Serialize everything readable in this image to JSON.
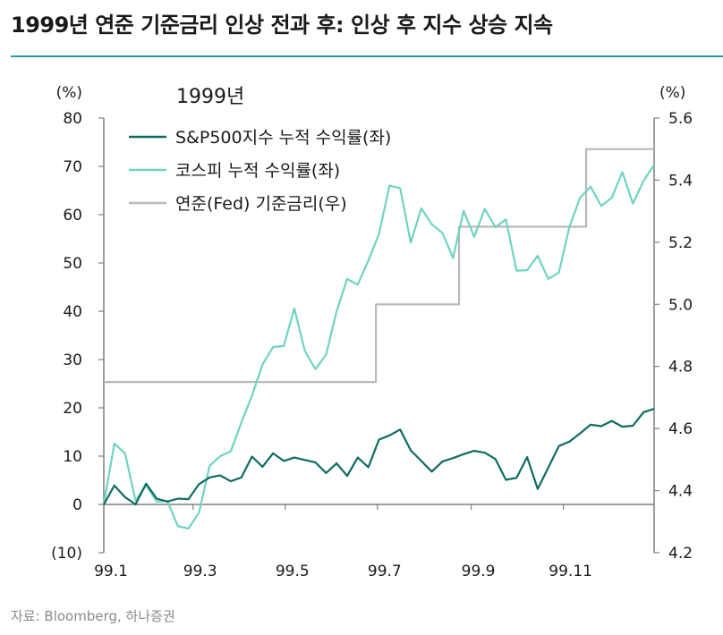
{
  "title": "1999년 연준 기준금리 인상 전과 후: 인상 후 지수 상승 지속",
  "source": "자료: Bloomberg, 하나증권",
  "chart_data": {
    "type": "line",
    "subtitle": "1999년",
    "left_axis": {
      "unit": "(%)",
      "ylim": [
        -10,
        80
      ],
      "ticks": [
        -10,
        0,
        10,
        20,
        30,
        40,
        50,
        60,
        70,
        80
      ],
      "tick_labels": [
        "(10)",
        "0",
        "10",
        "20",
        "30",
        "40",
        "50",
        "60",
        "70",
        "80"
      ]
    },
    "right_axis": {
      "unit": "(%)",
      "ylim": [
        4.2,
        5.6
      ],
      "ticks": [
        4.2,
        4.4,
        4.6,
        4.8,
        5.0,
        5.2,
        5.4,
        5.6
      ],
      "tick_labels": [
        "4.2",
        "4.4",
        "4.6",
        "4.8",
        "5.0",
        "5.2",
        "5.4",
        "5.6"
      ]
    },
    "x_axis": {
      "range": [
        "1999-01-01",
        "1999-12-31"
      ],
      "tick_labels": [
        "99.1",
        "99.3",
        "99.5",
        "99.7",
        "99.9",
        "99.11"
      ],
      "tick_dates": [
        "1999-01-01",
        "1999-03-01",
        "1999-05-01",
        "1999-07-01",
        "1999-09-01",
        "1999-11-01"
      ]
    },
    "legend_position": "top-left",
    "series": [
      {
        "name": "S&P500지수 누적 수익률(좌)",
        "axis": "left",
        "color": "#0f6b63",
        "points": [
          [
            "1999-01-01",
            0
          ],
          [
            "1999-01-08",
            3.9
          ],
          [
            "1999-01-15",
            1.5
          ],
          [
            "1999-01-22",
            0
          ],
          [
            "1999-01-29",
            4.3
          ],
          [
            "1999-02-05",
            1.2
          ],
          [
            "1999-02-12",
            0.6
          ],
          [
            "1999-02-19",
            1.2
          ],
          [
            "1999-02-26",
            1.1
          ],
          [
            "1999-03-05",
            4.2
          ],
          [
            "1999-03-12",
            5.6
          ],
          [
            "1999-03-19",
            6.0
          ],
          [
            "1999-03-26",
            4.8
          ],
          [
            "1999-04-02",
            5.6
          ],
          [
            "1999-04-09",
            9.9
          ],
          [
            "1999-04-16",
            7.8
          ],
          [
            "1999-04-23",
            10.6
          ],
          [
            "1999-04-30",
            9.0
          ],
          [
            "1999-05-07",
            9.7
          ],
          [
            "1999-05-14",
            9.2
          ],
          [
            "1999-05-21",
            8.7
          ],
          [
            "1999-05-28",
            6.5
          ],
          [
            "1999-06-04",
            8.5
          ],
          [
            "1999-06-11",
            5.9
          ],
          [
            "1999-06-18",
            9.7
          ],
          [
            "1999-06-25",
            7.7
          ],
          [
            "1999-07-02",
            13.4
          ],
          [
            "1999-07-09",
            14.3
          ],
          [
            "1999-07-16",
            15.5
          ],
          [
            "1999-07-23",
            11.2
          ],
          [
            "1999-07-30",
            9.0
          ],
          [
            "1999-08-06",
            6.8
          ],
          [
            "1999-08-13",
            8.9
          ],
          [
            "1999-08-20",
            9.6
          ],
          [
            "1999-08-27",
            10.4
          ],
          [
            "1999-09-03",
            11.1
          ],
          [
            "1999-09-10",
            10.7
          ],
          [
            "1999-09-17",
            9.4
          ],
          [
            "1999-09-24",
            5.1
          ],
          [
            "1999-10-01",
            5.5
          ],
          [
            "1999-10-08",
            9.8
          ],
          [
            "1999-10-15",
            3.2
          ],
          [
            "1999-10-22",
            7.6
          ],
          [
            "1999-10-29",
            12.1
          ],
          [
            "1999-11-05",
            13.0
          ],
          [
            "1999-11-12",
            14.7
          ],
          [
            "1999-11-19",
            16.5
          ],
          [
            "1999-11-26",
            16.2
          ],
          [
            "1999-12-03",
            17.3
          ],
          [
            "1999-12-10",
            16.1
          ],
          [
            "1999-12-17",
            16.3
          ],
          [
            "1999-12-24",
            19.1
          ],
          [
            "1999-12-31",
            19.8
          ]
        ]
      },
      {
        "name": "코스피 누적 수익률(좌)",
        "axis": "left",
        "color": "#6fd3c2",
        "points": [
          [
            "1999-01-01",
            0
          ],
          [
            "1999-01-08",
            12.6
          ],
          [
            "1999-01-15",
            10.6
          ],
          [
            "1999-01-22",
            0.8
          ],
          [
            "1999-01-29",
            4.0
          ],
          [
            "1999-02-05",
            0.6
          ],
          [
            "1999-02-12",
            0.7
          ],
          [
            "1999-02-19",
            -4.5
          ],
          [
            "1999-02-26",
            -5.0
          ],
          [
            "1999-03-05",
            -1.7
          ],
          [
            "1999-03-12",
            8.0
          ],
          [
            "1999-03-19",
            10.0
          ],
          [
            "1999-03-26",
            11.0
          ],
          [
            "1999-04-02",
            17.0
          ],
          [
            "1999-04-09",
            22.5
          ],
          [
            "1999-04-16",
            29.0
          ],
          [
            "1999-04-23",
            32.6
          ],
          [
            "1999-04-30",
            32.8
          ],
          [
            "1999-05-07",
            40.6
          ],
          [
            "1999-05-14",
            31.8
          ],
          [
            "1999-05-21",
            28.0
          ],
          [
            "1999-05-28",
            31.0
          ],
          [
            "1999-06-04",
            40.0
          ],
          [
            "1999-06-11",
            46.7
          ],
          [
            "1999-06-18",
            45.5
          ],
          [
            "1999-06-25",
            50.5
          ],
          [
            "1999-07-02",
            56.0
          ],
          [
            "1999-07-09",
            66.0
          ],
          [
            "1999-07-16",
            65.5
          ],
          [
            "1999-07-23",
            54.2
          ],
          [
            "1999-07-30",
            61.3
          ],
          [
            "1999-08-06",
            58.0
          ],
          [
            "1999-08-13",
            56.2
          ],
          [
            "1999-08-20",
            51.0
          ],
          [
            "1999-08-27",
            60.8
          ],
          [
            "1999-09-03",
            55.4
          ],
          [
            "1999-09-10",
            61.2
          ],
          [
            "1999-09-17",
            57.4
          ],
          [
            "1999-09-24",
            59.0
          ],
          [
            "1999-10-01",
            48.4
          ],
          [
            "1999-10-08",
            48.5
          ],
          [
            "1999-10-15",
            51.5
          ],
          [
            "1999-10-22",
            46.7
          ],
          [
            "1999-10-29",
            48.0
          ],
          [
            "1999-11-05",
            57.5
          ],
          [
            "1999-11-12",
            63.5
          ],
          [
            "1999-11-19",
            65.8
          ],
          [
            "1999-11-26",
            61.8
          ],
          [
            "1999-12-03",
            63.5
          ],
          [
            "1999-12-10",
            68.8
          ],
          [
            "1999-12-17",
            62.3
          ],
          [
            "1999-12-24",
            67.0
          ],
          [
            "1999-12-31",
            70.3
          ]
        ]
      },
      {
        "name": "연준(Fed) 기준금리(우)",
        "axis": "right",
        "color": "#b9b9b9",
        "step": true,
        "points": [
          [
            "1999-01-01",
            4.75
          ],
          [
            "1999-06-30",
            4.75
          ],
          [
            "1999-06-30",
            5.0
          ],
          [
            "1999-08-24",
            5.0
          ],
          [
            "1999-08-24",
            5.25
          ],
          [
            "1999-11-16",
            5.25
          ],
          [
            "1999-11-16",
            5.5
          ],
          [
            "1999-12-31",
            5.5
          ]
        ]
      }
    ]
  }
}
